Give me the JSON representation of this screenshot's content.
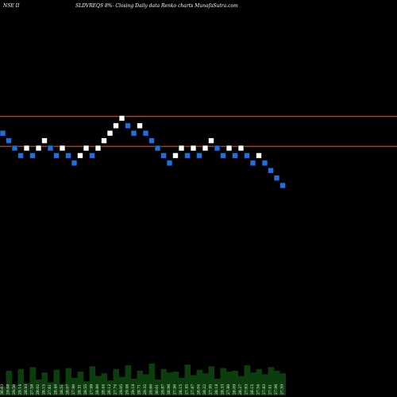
{
  "header": {
    "symbol": "NSE II",
    "title": "SLDVREQS 8%- Closing Daily data Renko charts MunafaSutra.com"
  },
  "colors": {
    "background": "#000000",
    "up_brick": "#ffffff",
    "down_brick": "#1e6fe0",
    "reference_line": "#c8652a",
    "volume": "#0c3d0c",
    "text": "#ffffff"
  },
  "chart_data": {
    "type": "renko",
    "price_range": [
      0,
      100
    ],
    "reference_lines": [
      72.0,
      64.0
    ],
    "bricks": [
      {
        "dir": "down",
        "value": 67.5
      },
      {
        "dir": "down",
        "value": 65.5
      },
      {
        "dir": "down",
        "value": 63.5
      },
      {
        "dir": "down",
        "value": 61.5
      },
      {
        "dir": "up",
        "value": 63.5
      },
      {
        "dir": "down",
        "value": 61.5
      },
      {
        "dir": "up",
        "value": 63.5
      },
      {
        "dir": "up",
        "value": 65.5
      },
      {
        "dir": "down",
        "value": 63.5
      },
      {
        "dir": "down",
        "value": 61.5
      },
      {
        "dir": "up",
        "value": 63.5
      },
      {
        "dir": "down",
        "value": 61.5
      },
      {
        "dir": "down",
        "value": 59.5
      },
      {
        "dir": "up",
        "value": 61.5
      },
      {
        "dir": "up",
        "value": 63.5
      },
      {
        "dir": "down",
        "value": 61.5
      },
      {
        "dir": "up",
        "value": 63.5
      },
      {
        "dir": "up",
        "value": 65.5
      },
      {
        "dir": "up",
        "value": 67.5
      },
      {
        "dir": "up",
        "value": 69.5
      },
      {
        "dir": "up",
        "value": 71.5
      },
      {
        "dir": "down",
        "value": 69.5
      },
      {
        "dir": "down",
        "value": 67.5
      },
      {
        "dir": "up",
        "value": 69.5
      },
      {
        "dir": "down",
        "value": 67.5
      },
      {
        "dir": "down",
        "value": 65.5
      },
      {
        "dir": "down",
        "value": 63.5
      },
      {
        "dir": "down",
        "value": 61.5
      },
      {
        "dir": "down",
        "value": 59.5
      },
      {
        "dir": "up",
        "value": 61.5
      },
      {
        "dir": "up",
        "value": 63.5
      },
      {
        "dir": "down",
        "value": 61.5
      },
      {
        "dir": "up",
        "value": 63.5
      },
      {
        "dir": "down",
        "value": 61.5
      },
      {
        "dir": "up",
        "value": 63.5
      },
      {
        "dir": "up",
        "value": 65.5
      },
      {
        "dir": "down",
        "value": 63.5
      },
      {
        "dir": "down",
        "value": 61.5
      },
      {
        "dir": "up",
        "value": 63.5
      },
      {
        "dir": "down",
        "value": 61.5
      },
      {
        "dir": "up",
        "value": 63.5
      },
      {
        "dir": "down",
        "value": 61.5
      },
      {
        "dir": "down",
        "value": 59.5
      },
      {
        "dir": "up",
        "value": 61.5
      },
      {
        "dir": "down",
        "value": 59.5
      },
      {
        "dir": "down",
        "value": 57.5
      },
      {
        "dir": "down",
        "value": 55.5
      },
      {
        "dir": "down",
        "value": 53.5
      }
    ],
    "volume_bars": [
      10,
      28,
      12,
      30,
      14,
      32,
      18,
      26,
      15,
      29,
      13,
      31,
      20,
      27,
      16,
      33,
      22,
      25,
      17,
      30,
      21,
      34,
      19,
      28,
      24,
      36,
      18,
      30,
      26,
      27,
      20,
      35,
      23,
      29,
      25,
      33,
      19,
      31,
      27,
      28,
      22,
      34,
      26,
      30,
      24,
      32,
      28,
      25
    ],
    "price_labels": [
      "30.03",
      "29.68",
      "29.50",
      "29.14",
      "28.93",
      "27.58",
      "28.02",
      "28.15",
      "27.61",
      "28.40",
      "28.51",
      "28.07",
      "27.90",
      "28.31",
      "28.55",
      "27.98",
      "28.80",
      "28.44",
      "28.12",
      "27.74",
      "29.05",
      "29.46",
      "29.18",
      "28.71",
      "29.32",
      "29.60",
      "30.01",
      "29.87",
      "28.96",
      "27.90",
      "28.15",
      "27.45",
      "27.87",
      "28.04",
      "28.22",
      "27.95",
      "28.18",
      "28.33",
      "27.80",
      "28.09",
      "28.27",
      "27.63",
      "28.15",
      "27.54",
      "27.83",
      "27.41",
      "27.96",
      "27.59"
    ]
  }
}
